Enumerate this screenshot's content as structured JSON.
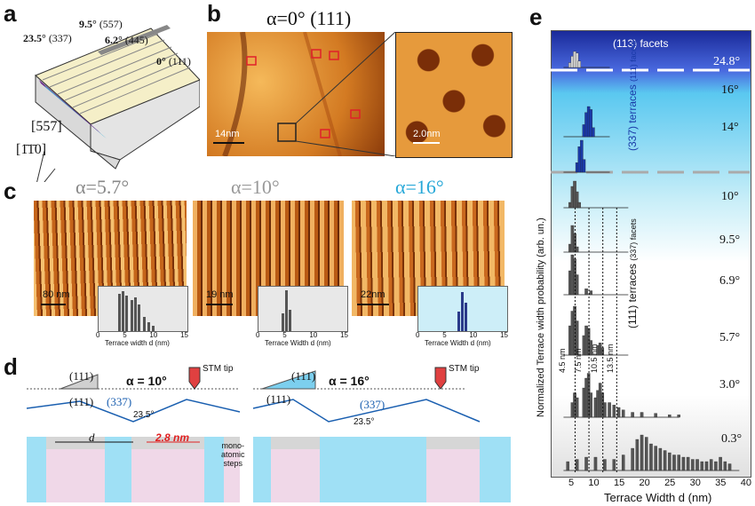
{
  "panels": {
    "a": {
      "label": "a",
      "angles": [
        {
          "value": "23.5°",
          "face": "(337)"
        },
        {
          "value": "9.5°",
          "face": "(557)"
        },
        {
          "value": "6.2°",
          "face": "(445)"
        },
        {
          "value": "0°",
          "face": "(111)"
        }
      ],
      "dir1": "[557]",
      "dir2": "[1̄1̄0]"
    },
    "b": {
      "label": "b",
      "title": "α=0°  (111)",
      "scale_left": "14nm",
      "scale_right": "2.0nm"
    },
    "c": {
      "label": "c",
      "images": [
        {
          "alpha": "α=5.7°",
          "scale": "80 nm"
        },
        {
          "alpha": "α=10°",
          "scale": "19 nm"
        },
        {
          "alpha": "α=16°",
          "scale": "22nm"
        }
      ],
      "inset_xlabel": "Terrace width d (nm)",
      "inset_xlabel2": "Terrace Width d (nm)",
      "inset_ticks": [
        "0",
        "5",
        "10",
        "15"
      ]
    },
    "d": {
      "label": "d",
      "left": {
        "alpha": "α = 10°",
        "face111": "(111)",
        "face337": "(337)",
        "angle": "23.5°",
        "tip": "STM tip",
        "d": "d",
        "width": "2.8 nm"
      },
      "right": {
        "alpha": "α = 16°",
        "face111": "(111)",
        "face337": "(337)",
        "angle": "23.5°",
        "tip": "STM tip"
      },
      "steps": "mono-\natomic\nsteps"
    },
    "e": {
      "label": "e",
      "header": "(113) facets",
      "ylabel": "Normalized Terrace width probability (arb. un.)",
      "xlabel": "Terrace Width d (nm)",
      "side_337": "(337) terraces",
      "side_337_sub": "(111) facets",
      "side_111": "(111) terraces",
      "side_111_sub": "(337) facets",
      "angles": [
        "24.8°",
        "16°",
        "14°",
        "10°",
        "9.5°",
        "6.9°",
        "5.7°",
        "3.0°",
        "0.3°"
      ],
      "dashed_labels": [
        "4.5 nm",
        "7.5 nm",
        "10.5 nm",
        "13.5 nm"
      ],
      "xticks": [
        "5",
        "10",
        "15",
        "20",
        "25",
        "30",
        "35",
        "40"
      ]
    }
  },
  "chart_data": {
    "type": "bar",
    "title": "",
    "xlabel": "Terrace Width d (nm)",
    "ylabel": "Normalized Terrace width probability (arb. un.)",
    "xlim": [
      0,
      40
    ],
    "x_ticks": [
      5,
      10,
      15,
      20,
      25,
      30,
      35,
      40
    ],
    "series": [
      {
        "name": "24.8°",
        "x": [
          3.5,
          4,
          4.5,
          5,
          5.5
        ],
        "values": [
          0.3,
          0.7,
          1.0,
          0.9,
          0.4
        ]
      },
      {
        "name": "16°",
        "x": [
          6.5,
          7,
          7.5,
          8,
          8.5
        ],
        "values": [
          0.4,
          0.8,
          1.0,
          0.9,
          0.3
        ]
      },
      {
        "name": "14°",
        "x": [
          5,
          5.5,
          6,
          6.5
        ],
        "values": [
          0.3,
          0.8,
          1.0,
          0.4
        ]
      },
      {
        "name": "10°",
        "x": [
          3.5,
          4,
          4.5,
          5,
          5.5
        ],
        "values": [
          0.2,
          0.8,
          1.0,
          0.6,
          0.2
        ]
      },
      {
        "name": "9.5°",
        "x": [
          3.5,
          4,
          4.5,
          5
        ],
        "values": [
          0.3,
          1.0,
          0.7,
          0.2
        ]
      },
      {
        "name": "6.9°",
        "x": [
          3.5,
          4,
          4.5,
          5,
          7,
          8
        ],
        "values": [
          0.6,
          1.0,
          0.9,
          0.5,
          0.15,
          0.1
        ]
      },
      {
        "name": "5.7°",
        "x": [
          3.5,
          4,
          4.5,
          5,
          6.5,
          7,
          7.5,
          8,
          9.5,
          10,
          10.5
        ],
        "values": [
          0.6,
          0.9,
          1.0,
          0.7,
          0.4,
          0.6,
          0.55,
          0.3,
          0.2,
          0.25,
          0.15
        ]
      },
      {
        "name": "3.0°",
        "x": [
          4,
          4.5,
          5,
          6.5,
          7,
          7.5,
          8,
          9,
          9.5,
          10,
          10.5,
          11,
          12,
          13,
          14,
          15,
          17,
          19,
          22,
          25,
          27
        ],
        "values": [
          0.3,
          0.5,
          0.4,
          0.6,
          0.8,
          0.9,
          0.5,
          0.4,
          0.55,
          0.7,
          0.5,
          0.3,
          0.3,
          0.25,
          0.2,
          0.15,
          0.1,
          0.1,
          0.08,
          0.05,
          0.05
        ]
      },
      {
        "name": "0.3°",
        "x": [
          3,
          5,
          7,
          9,
          11,
          13,
          15,
          17,
          18,
          19,
          20,
          21,
          22,
          23,
          24,
          25,
          26,
          27,
          28,
          29,
          30,
          31,
          32,
          33,
          34,
          35,
          36,
          37,
          38
        ],
        "values": [
          0.2,
          0.25,
          0.3,
          0.3,
          0.25,
          0.25,
          0.35,
          0.5,
          0.7,
          0.8,
          0.75,
          0.6,
          0.55,
          0.5,
          0.45,
          0.4,
          0.35,
          0.35,
          0.3,
          0.3,
          0.25,
          0.25,
          0.2,
          0.2,
          0.25,
          0.2,
          0.3,
          0.2,
          0.15
        ]
      }
    ],
    "dashed_lines_nm": [
      4.5,
      7.5,
      10.5,
      13.5
    ],
    "colors": {
      "facet_bars": "#cfcfcf",
      "337_bars": "#1a3aa8",
      "111_bars": "#555555"
    }
  }
}
